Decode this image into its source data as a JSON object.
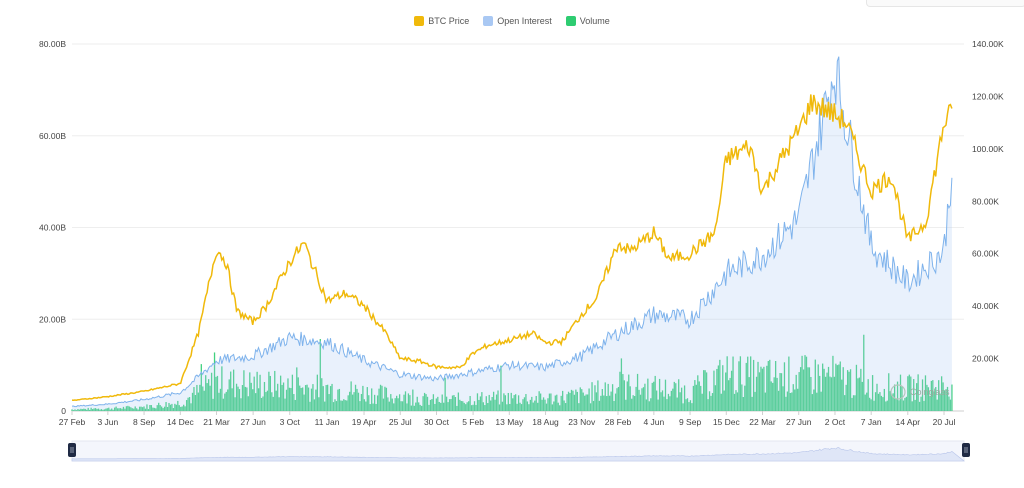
{
  "legend": {
    "btc_price": "BTC Price",
    "open_interest": "Open Interest",
    "volume": "Volume"
  },
  "colors": {
    "btc_price": "#f0b90b",
    "open_interest": "#a9c8f3",
    "open_interest_line": "#7fb3ec",
    "volume": "#2ecc71",
    "navigator": "#dfe6f7",
    "grid": "#eeeeee"
  },
  "watermark": "Coinglass",
  "chart_data": {
    "type": "line",
    "title": "",
    "x_axis": {
      "type": "date",
      "tick_labels": [
        "27 Feb",
        "3 Jun",
        "8 Sep",
        "14 Dec",
        "21 Mar",
        "27 Jun",
        "3 Oct",
        "11 Jan",
        "19 Apr",
        "25 Jul",
        "30 Oct",
        "5 Feb",
        "13 May",
        "18 Aug",
        "23 Nov",
        "28 Feb",
        "4 Jun",
        "9 Sep",
        "15 Dec",
        "22 Mar",
        "27 Jun",
        "2 Oct",
        "7 Jan",
        "14 Apr",
        "20 Jul"
      ]
    },
    "y_left": {
      "ticks": [
        "0",
        "20.00B",
        "40.00B",
        "60.00B",
        "80.00B"
      ],
      "range": [
        0,
        80000000000
      ]
    },
    "y_right": {
      "ticks": [
        "20.00K",
        "40.00K",
        "60.00K",
        "80.00K",
        "100.00K",
        "120.00K",
        "140.00K"
      ],
      "range": [
        0,
        140000
      ]
    },
    "grid": true,
    "legend_position": "top-center",
    "series": [
      {
        "name": "BTC Price",
        "axis": "right",
        "style": "line",
        "x": [
          "27 Feb",
          "3 Jun",
          "8 Sep",
          "14 Dec",
          "1 Feb",
          "21 Mar",
          "15 Apr",
          "15 May",
          "27 Jun",
          "1 Aug",
          "3 Oct",
          "10 Nov",
          "11 Jan",
          "1 Mar",
          "19 Apr",
          "15 Jun",
          "25 Jul",
          "15 Sep",
          "30 Oct",
          "1 Jan",
          "5 Feb",
          "15 Mar",
          "13 May",
          "15 Jul",
          "18 Aug",
          "1 Oct",
          "23 Nov",
          "1 Jan",
          "28 Feb",
          "1 Apr",
          "4 Jun",
          "15 Jul",
          "9 Sep",
          "15 Nov",
          "15 Dec",
          "15 Feb",
          "22 Mar",
          "15 May",
          "27 Jun",
          "1 Aug",
          "2 Oct",
          "1 Nov",
          "7 Jan",
          "1 Mar",
          "14 Apr",
          "1 Jun",
          "20 Jul",
          "10 Aug"
        ],
        "y": [
          4000,
          5500,
          7500,
          10500,
          30000,
          62000,
          57000,
          38000,
          34000,
          40000,
          57000,
          64000,
          42000,
          45000,
          40000,
          30000,
          20000,
          19000,
          16800,
          16500,
          22000,
          25000,
          27000,
          29500,
          26000,
          26500,
          37000,
          43000,
          64000,
          61000,
          68000,
          58000,
          60000,
          68000,
          96000,
          101000,
          84000,
          97000,
          107000,
          118000,
          113000,
          110000,
          84000,
          90000,
          65000,
          72000,
          110000,
          114000
        ]
      },
      {
        "name": "Open Interest",
        "axis": "left",
        "style": "area",
        "x": [
          "27 Feb",
          "3 Jun",
          "8 Sep",
          "14 Dec",
          "21 Mar",
          "27 Jun",
          "3 Oct",
          "11 Jan",
          "19 Apr",
          "25 Jul",
          "30 Oct",
          "5 Feb",
          "13 May",
          "18 Aug",
          "23 Nov",
          "28 Feb",
          "4 Jun",
          "9 Sep",
          "15 Dec",
          "22 Mar",
          "27 Jun",
          "2 Oct",
          "7 Jan",
          "14 Apr",
          "20 Jul",
          "10 Aug"
        ],
        "y": [
          1000000000,
          1500000000,
          2500000000,
          4000000000,
          11000000000,
          12000000000,
          16000000000,
          15000000000,
          11000000000,
          8000000000,
          7000000000,
          8500000000,
          10000000000,
          9500000000,
          12000000000,
          17000000000,
          21000000000,
          20000000000,
          30000000000,
          34000000000,
          42000000000,
          75000000000,
          36000000000,
          28000000000,
          35000000000,
          53000000000
        ]
      },
      {
        "name": "Volume",
        "axis": "left",
        "style": "bar",
        "x": [
          "27 Feb",
          "3 Jun",
          "8 Sep",
          "14 Dec",
          "21 Mar",
          "27 Jun",
          "3 Oct",
          "11 Jan",
          "19 Apr",
          "25 Jul",
          "30 Oct",
          "5 Feb",
          "13 May",
          "18 Aug",
          "23 Nov",
          "28 Feb",
          "4 Jun",
          "9 Sep",
          "15 Dec",
          "22 Mar",
          "27 Jun",
          "2 Oct",
          "7 Jan",
          "14 Apr",
          "20 Jul",
          "10 Aug"
        ],
        "y": [
          400000000,
          600000000,
          1000000000,
          2000000000,
          7000000000,
          6500000000,
          6000000000,
          5500000000,
          4500000000,
          3500000000,
          2500000000,
          3000000000,
          3200000000,
          3000000000,
          3800000000,
          6000000000,
          5500000000,
          4500000000,
          9000000000,
          8000000000,
          8500000000,
          8500000000,
          6000000000,
          5500000000,
          6000000000,
          7000000000
        ]
      }
    ]
  }
}
